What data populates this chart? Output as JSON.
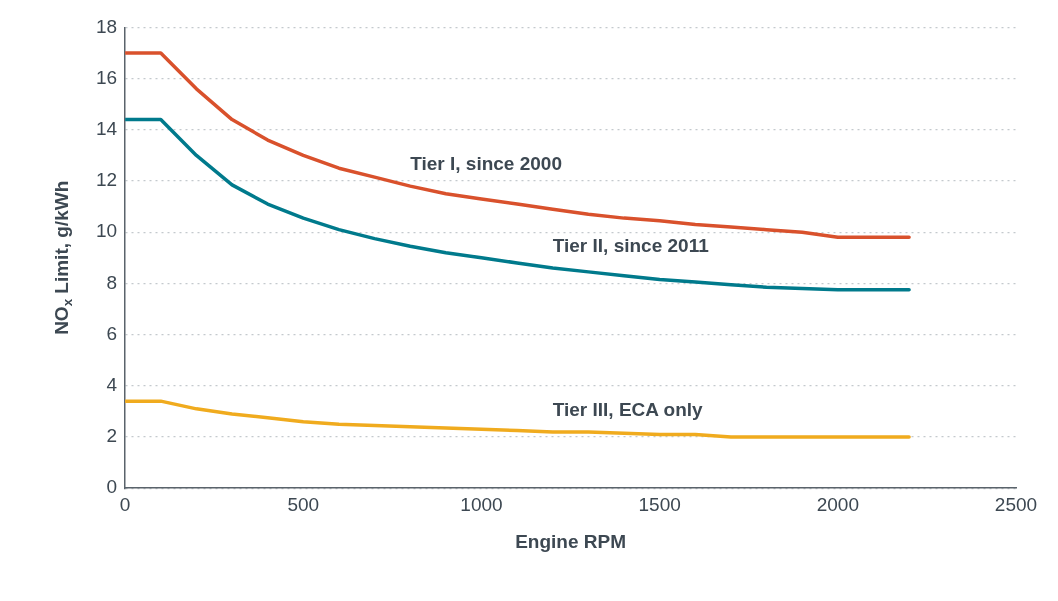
{
  "chart_data": {
    "type": "line",
    "xlabel": "Engine RPM",
    "ylabel": "NO$_{x}$ Limit, g/kWh",
    "x": [
      0,
      100,
      200,
      300,
      400,
      500,
      600,
      700,
      800,
      900,
      1000,
      1100,
      1200,
      1300,
      1400,
      1500,
      1600,
      1700,
      1800,
      1900,
      2000,
      2100,
      2200
    ],
    "series": [
      {
        "name": "Tier I, since 2000",
        "color": "#d9512c",
        "values": [
          17,
          17,
          15.6,
          14.4,
          13.6,
          13,
          12.5,
          12.15,
          11.8,
          11.5,
          11.3,
          11.1,
          10.9,
          10.7,
          10.55,
          10.45,
          10.3,
          10.2,
          10.1,
          10,
          9.8,
          9.8,
          9.8
        ]
      },
      {
        "name": "Tier II, since 2011",
        "color": "#007a8c",
        "values": [
          14.4,
          14.4,
          13,
          11.85,
          11.1,
          10.55,
          10.1,
          9.75,
          9.45,
          9.2,
          9,
          8.8,
          8.6,
          8.45,
          8.3,
          8.15,
          8.05,
          7.95,
          7.85,
          7.8,
          7.75,
          7.75,
          7.75
        ]
      },
      {
        "name": "Tier III, ECA only",
        "color": "#f0ab1e",
        "values": [
          3.4,
          3.4,
          3.1,
          2.9,
          2.75,
          2.6,
          2.5,
          2.45,
          2.4,
          2.35,
          2.3,
          2.25,
          2.2,
          2.2,
          2.15,
          2.1,
          2.1,
          2.0,
          2.0,
          2.0,
          2.0,
          2.0,
          2.0
        ]
      }
    ],
    "xlim": [
      0,
      2500
    ],
    "xticks": [
      0,
      500,
      1000,
      1500,
      2000,
      2500
    ],
    "ylim": [
      0,
      18
    ],
    "yticks": [
      0,
      2,
      4,
      6,
      8,
      10,
      12,
      14,
      16,
      18
    ],
    "grid": "y",
    "legend": false,
    "marker": "none",
    "line_style": "solid"
  }
}
